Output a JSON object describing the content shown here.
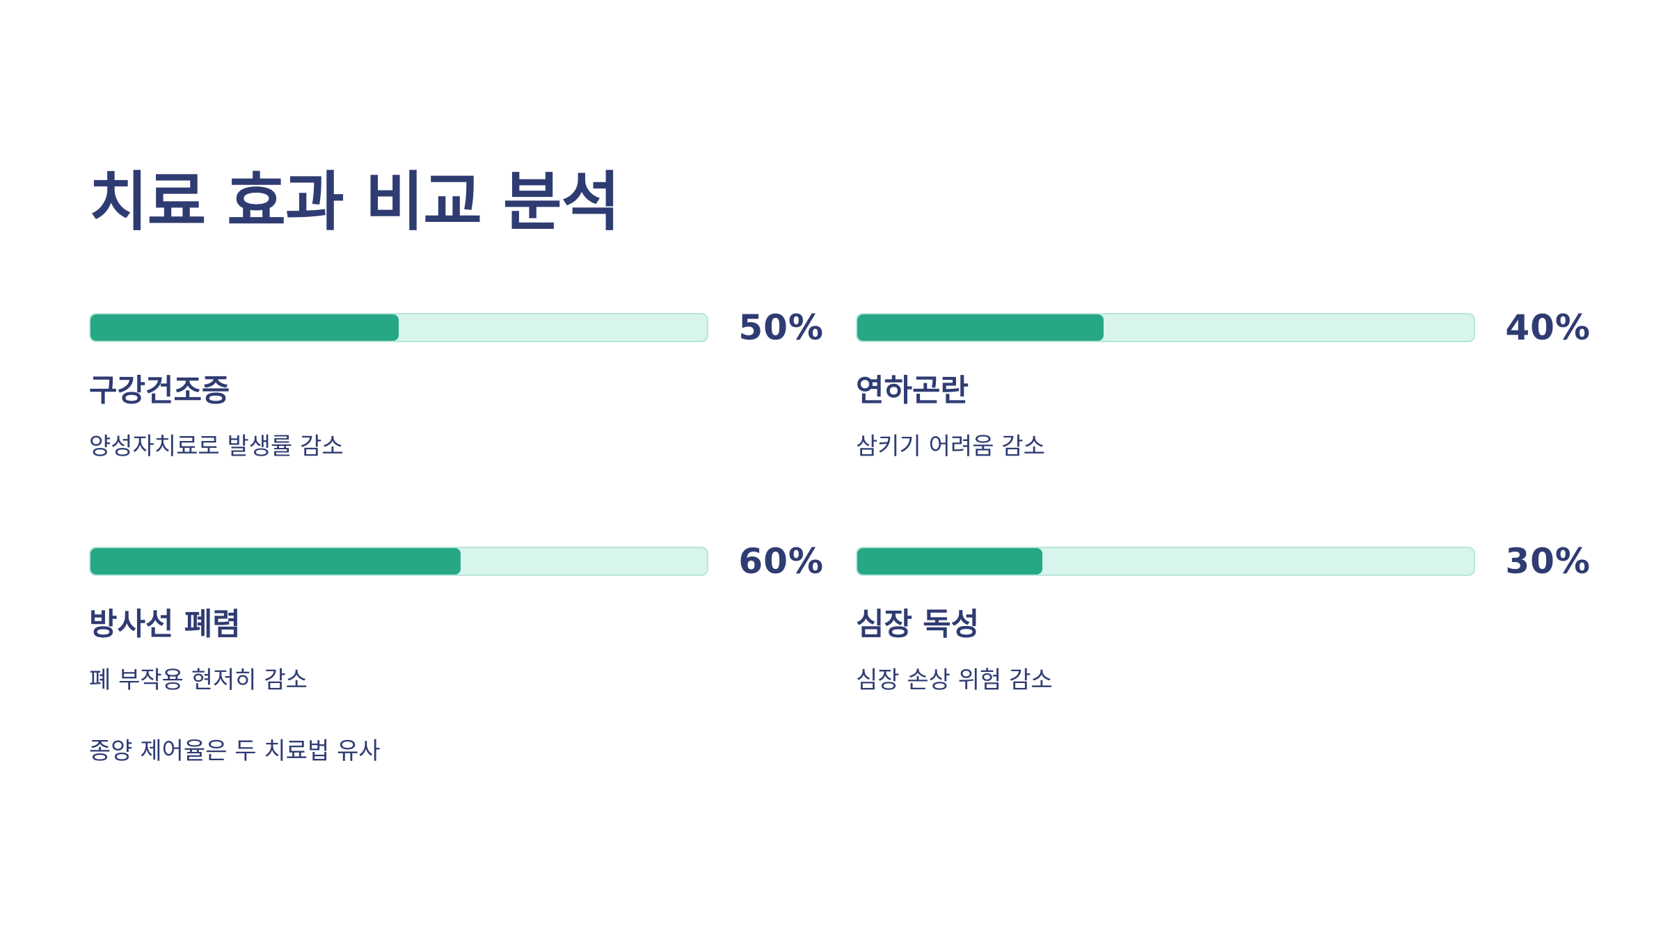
{
  "title": "치료 효과 비교 분석",
  "items": [
    {
      "value": "50%",
      "fraction": 0.5,
      "title": "구강건조증",
      "description": "양성자치료로 발생률 감소"
    },
    {
      "value": "40%",
      "fraction": 0.4,
      "title": "연하곤란",
      "description": "삼키기 어려움 감소"
    },
    {
      "value": "60%",
      "fraction": 0.6,
      "title": "방사선 폐렴",
      "description": "폐 부작용 현저히 감소"
    },
    {
      "value": "30%",
      "fraction": 0.3,
      "title": "심장 독성",
      "description": "심장 손상 위험 감소"
    }
  ],
  "footnote": "종양 제어율은 두 치료법 유사",
  "colors": {
    "text": "#2f3c72",
    "bar_fill": "#26a887",
    "bar_track": "#d7f5ed"
  }
}
